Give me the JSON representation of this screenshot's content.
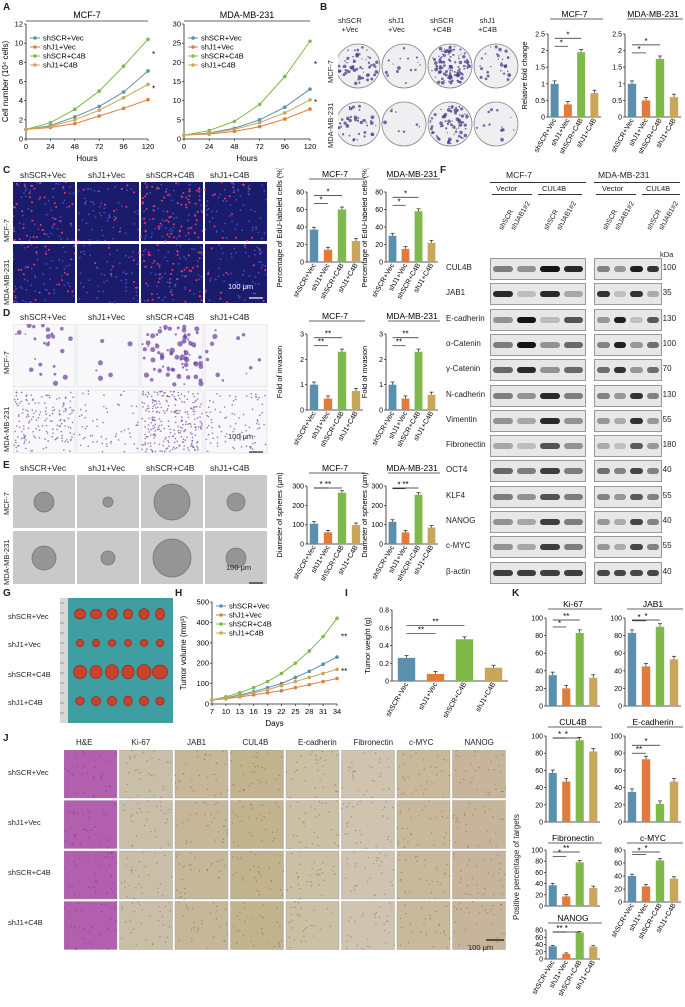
{
  "panel_labels": [
    "A",
    "B",
    "C",
    "D",
    "E",
    "F",
    "G",
    "H",
    "I",
    "J",
    "K"
  ],
  "colors": {
    "shSCR+Vec": "#5b8fae",
    "shJ1+Vec": "#e07b3c",
    "shSCR+C4B": "#7eb94a",
    "shJ1+C4B": "#c9a75a"
  },
  "groups": [
    "shSCR+Vec",
    "shJ1+Vec",
    "shSCR+C4B",
    "shJ1+C4B"
  ],
  "cells": {
    "mcf7": "MCF-7",
    "mdamb231": "MDA-MB-231"
  },
  "stars": {
    "one": "*",
    "two": "**"
  },
  "scale_100um": "100 μm",
  "panelA": {
    "ylabel": "Cell number (10⁴ cells)",
    "xlabel": "Hours",
    "xticks": [
      0,
      24,
      48,
      72,
      96,
      120
    ],
    "yticks": [
      0,
      2,
      4,
      6,
      8,
      10,
      12
    ],
    "yticks_mda": [
      0,
      5,
      10,
      15,
      20,
      25,
      30
    ]
  },
  "panelB": {
    "cols": [
      "shSCR\n+Vec",
      "shJ1\n+Vec",
      "shSCR\n+C4B",
      "shJ1\n+C4B"
    ],
    "col_l1": [
      "shSCR",
      "shJ1",
      "shSCR",
      "shJ1"
    ],
    "col_l2": [
      "+Vec",
      "+Vec",
      "+C4B",
      "+C4B"
    ],
    "ylabel": "Relative fold change",
    "yticks": [
      0,
      0.5,
      1.0,
      1.5,
      2.0,
      2.5
    ]
  },
  "panelC": {
    "ylabel": "Percentage of EdU-labeled cells (%)",
    "yticks": [
      0,
      20,
      40,
      60,
      80
    ]
  },
  "panelD": {
    "ylabel": "Fold of invasion",
    "yticks": [
      0,
      1,
      2,
      3
    ]
  },
  "panelE": {
    "ylabel": "Diameter of spheres (μm)",
    "yticks": [
      0,
      100,
      200,
      300
    ]
  },
  "panelF": {
    "groups": [
      "Vector",
      "CUL4B"
    ],
    "lanes": [
      "shSCR",
      "shJAB1#2",
      "shSCR",
      "shJAB1#2"
    ],
    "kda_label": "kDa",
    "rows": [
      {
        "name": "CUL4B",
        "kda": "100"
      },
      {
        "name": "JAB1",
        "kda": "35"
      },
      {
        "name": "E-cadherin",
        "kda": "130"
      },
      {
        "name": "α-Catenin",
        "kda": "100"
      },
      {
        "name": "γ-Catenin",
        "kda": "70"
      },
      {
        "name": "N-cadherin",
        "kda": "130"
      },
      {
        "name": "Vimentin",
        "kda": "55"
      },
      {
        "name": "Fibronectin",
        "kda": "180"
      },
      {
        "name": "OCT4",
        "kda": "40"
      },
      {
        "name": "KLF4",
        "kda": "55"
      },
      {
        "name": "NANOG",
        "kda": "40"
      },
      {
        "name": "c-MYC",
        "kda": "55"
      },
      {
        "name": "β-actin",
        "kda": "40"
      }
    ]
  },
  "panelH": {
    "ylabel": "Tumor volume (mm³)",
    "xlabel": "Days",
    "xticks": [
      "7",
      "10",
      "13",
      "16",
      "19",
      "22",
      "25",
      "28",
      "31",
      "34"
    ],
    "yticks": [
      0,
      100,
      200,
      300,
      400,
      500
    ]
  },
  "panelI": {
    "ylabel": "Tumor weight (g)",
    "yticks": [
      0,
      0.2,
      0.4,
      0.6,
      0.8
    ]
  },
  "panelJ": {
    "cols": [
      "H&E",
      "Ki-67",
      "JAB1",
      "CUL4B",
      "E-cadherin",
      "Fibronectin",
      "c-MYC",
      "NANOG"
    ]
  },
  "panelK": {
    "ylabel": "Positive percentage of targets",
    "yticks": [
      0,
      20,
      40,
      60,
      80,
      100
    ]
  },
  "chart_data": [
    {
      "id": "A1",
      "type": "line",
      "title": "MCF-7",
      "x": [
        0,
        24,
        48,
        72,
        96,
        120
      ],
      "ylim": [
        0,
        12
      ],
      "series": [
        {
          "name": "shSCR+Vec",
          "values": [
            1,
            1.4,
            2.3,
            3.4,
            4.9,
            7.1
          ]
        },
        {
          "name": "shJ1+Vec",
          "values": [
            1,
            1.2,
            1.6,
            2.4,
            3.2,
            4.1
          ]
        },
        {
          "name": "shSCR+C4B",
          "values": [
            1,
            1.7,
            3.1,
            5.0,
            7.6,
            10.4
          ]
        },
        {
          "name": "shJ1+C4B",
          "values": [
            1,
            1.3,
            2.0,
            3.0,
            4.3,
            5.7
          ]
        }
      ]
    },
    {
      "id": "A2",
      "type": "line",
      "title": "MDA-MB-231",
      "x": [
        0,
        24,
        48,
        72,
        96,
        120
      ],
      "ylim": [
        0,
        30
      ],
      "series": [
        {
          "name": "shSCR+Vec",
          "values": [
            1,
            1.6,
            2.8,
            5.0,
            8.3,
            13.0
          ]
        },
        {
          "name": "shJ1+Vec",
          "values": [
            1,
            1.3,
            2.0,
            3.2,
            5.2,
            7.8
          ]
        },
        {
          "name": "shSCR+C4B",
          "values": [
            1,
            2.2,
            4.6,
            9.0,
            16.3,
            25.5
          ]
        },
        {
          "name": "shJ1+C4B",
          "values": [
            1,
            1.5,
            2.5,
            4.3,
            6.8,
            10.2
          ]
        }
      ]
    },
    {
      "id": "B1",
      "type": "bar",
      "title": "MCF-7",
      "categories": [
        "shSCR+Vec",
        "shJ1+Vec",
        "shSCR+C4B",
        "shJ1+C4B"
      ],
      "values": [
        1.0,
        0.38,
        1.95,
        0.72
      ],
      "ylim": [
        0,
        2.5
      ]
    },
    {
      "id": "B2",
      "type": "bar",
      "title": "MDA-MB-231",
      "categories": [
        "shSCR+Vec",
        "shJ1+Vec",
        "shSCR+C4B",
        "shJ1+C4B"
      ],
      "values": [
        1.0,
        0.5,
        1.75,
        0.6
      ],
      "ylim": [
        0,
        2.5
      ]
    },
    {
      "id": "C1",
      "type": "bar",
      "title": "MCF-7",
      "categories": [
        "shSCR+Vec",
        "shJ1+Vec",
        "shSCR+C4B",
        "shJ1+C4B"
      ],
      "values": [
        37,
        14,
        60,
        24
      ],
      "ylim": [
        0,
        80
      ]
    },
    {
      "id": "C2",
      "type": "bar",
      "title": "MDA-MB-231",
      "categories": [
        "shSCR+Vec",
        "shJ1+Vec",
        "shSCR+C4B",
        "shJ1+C4B"
      ],
      "values": [
        30,
        15,
        58,
        22
      ],
      "ylim": [
        0,
        80
      ]
    },
    {
      "id": "D1",
      "type": "bar",
      "title": "MCF-7",
      "categories": [
        "shSCR+Vec",
        "shJ1+Vec",
        "shSCR+C4B",
        "shJ1+C4B"
      ],
      "values": [
        1.0,
        0.45,
        2.3,
        0.75
      ],
      "ylim": [
        0,
        3
      ]
    },
    {
      "id": "D2",
      "type": "bar",
      "title": "MDA-MB-231",
      "categories": [
        "shSCR+Vec",
        "shJ1+Vec",
        "shSCR+C4B",
        "shJ1+C4B"
      ],
      "values": [
        1.0,
        0.45,
        2.3,
        0.6
      ],
      "ylim": [
        0,
        3
      ]
    },
    {
      "id": "E1",
      "type": "bar",
      "title": "MCF-7",
      "categories": [
        "shSCR+Vec",
        "shJ1+Vec",
        "shSCR+C4B",
        "shJ1+C4B"
      ],
      "values": [
        105,
        60,
        265,
        98
      ],
      "ylim": [
        0,
        300
      ]
    },
    {
      "id": "E2",
      "type": "bar",
      "title": "MDA-MB-231",
      "categories": [
        "shSCR+Vec",
        "shJ1+Vec",
        "shSCR+C4B",
        "shJ1+C4B"
      ],
      "values": [
        115,
        60,
        255,
        85
      ],
      "ylim": [
        0,
        300
      ]
    },
    {
      "id": "H",
      "type": "line",
      "x": [
        7,
        10,
        13,
        16,
        19,
        22,
        25,
        28,
        31,
        34
      ],
      "ylim": [
        0,
        500
      ],
      "series": [
        {
          "name": "shSCR+Vec",
          "values": [
            20,
            30,
            45,
            60,
            80,
            100,
            130,
            160,
            195,
            230
          ]
        },
        {
          "name": "shJ1+Vec",
          "values": [
            20,
            25,
            35,
            45,
            55,
            65,
            80,
            95,
            110,
            125
          ]
        },
        {
          "name": "shSCR+C4B",
          "values": [
            20,
            35,
            55,
            80,
            110,
            150,
            200,
            260,
            330,
            420
          ]
        },
        {
          "name": "shJ1+C4B",
          "values": [
            20,
            28,
            40,
            55,
            70,
            90,
            110,
            130,
            150,
            170
          ]
        }
      ]
    },
    {
      "id": "I",
      "type": "bar",
      "categories": [
        "shSCR+Vec",
        "shJ1+Vec",
        "shSCR+C4B",
        "shJ1+C4B"
      ],
      "values": [
        0.26,
        0.08,
        0.47,
        0.15
      ],
      "ylim": [
        0,
        0.8
      ]
    },
    {
      "id": "K1",
      "type": "bar",
      "title": "Ki-67",
      "categories": [
        "shSCR+Vec",
        "shJ1+Vec",
        "shSCR+C4B",
        "shJ1+C4B"
      ],
      "values": [
        35,
        20,
        83,
        32
      ],
      "ylim": [
        0,
        100
      ]
    },
    {
      "id": "K2",
      "type": "bar",
      "title": "JAB1",
      "categories": [
        "shSCR+Vec",
        "shJ1+Vec",
        "shSCR+C4B",
        "shJ1+C4B"
      ],
      "values": [
        83,
        45,
        90,
        53
      ],
      "ylim": [
        0,
        100
      ]
    },
    {
      "id": "K3",
      "type": "bar",
      "title": "CUL4B",
      "categories": [
        "shSCR+Vec",
        "shJ1+Vec",
        "shSCR+C4B",
        "shJ1+C4B"
      ],
      "values": [
        57,
        47,
        95,
        82
      ],
      "ylim": [
        0,
        100
      ]
    },
    {
      "id": "K4",
      "type": "bar",
      "title": "E-cadherin",
      "categories": [
        "shSCR+Vec",
        "shJ1+Vec",
        "shSCR+C4B",
        "shJ1+C4B"
      ],
      "values": [
        35,
        73,
        21,
        47
      ],
      "ylim": [
        0,
        100
      ]
    },
    {
      "id": "K5",
      "type": "bar",
      "title": "Fibronectin",
      "categories": [
        "shSCR+Vec",
        "shJ1+Vec",
        "shSCR+C4B",
        "shJ1+C4B"
      ],
      "values": [
        37,
        17,
        78,
        32
      ],
      "ylim": [
        0,
        100
      ]
    },
    {
      "id": "K6",
      "type": "bar",
      "title": "c-MYC",
      "categories": [
        "shSCR+Vec",
        "shJ1+Vec",
        "shSCR+C4B",
        "shJ1+C4B"
      ],
      "values": [
        40,
        24,
        64,
        36
      ],
      "ylim": [
        0,
        80
      ]
    },
    {
      "id": "K7",
      "type": "bar",
      "title": "NANOG",
      "categories": [
        "shSCR+Vec",
        "shJ1+Vec",
        "shSCR+C4B",
        "shJ1+C4B"
      ],
      "values": [
        35,
        14,
        73,
        34
      ],
      "ylim": [
        0,
        80
      ]
    }
  ]
}
